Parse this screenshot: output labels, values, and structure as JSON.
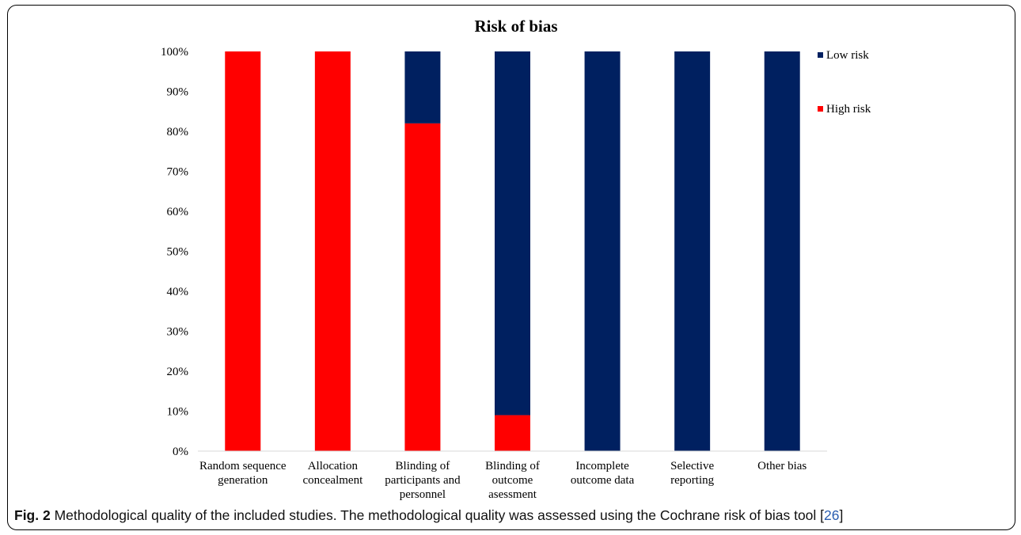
{
  "chart_data": {
    "type": "bar",
    "stacked": true,
    "title": "Risk of bias",
    "categories": [
      [
        "Random sequence",
        "generation"
      ],
      [
        "Allocation",
        "concealment"
      ],
      [
        "Blinding of",
        "participants and",
        "personnel"
      ],
      [
        "Blinding of",
        "outcome",
        "asessment"
      ],
      [
        "Incomplete",
        "outcome data"
      ],
      [
        "Selective",
        "reporting"
      ],
      [
        "Other bias"
      ]
    ],
    "series": [
      {
        "name": "High risk",
        "color": "#ff0000",
        "values": [
          100,
          100,
          82,
          9,
          0,
          0,
          0
        ]
      },
      {
        "name": "Low risk",
        "color": "#002060",
        "values": [
          0,
          0,
          18,
          91,
          100,
          100,
          100
        ]
      }
    ],
    "yticks": [
      "0%",
      "10%",
      "20%",
      "30%",
      "40%",
      "50%",
      "60%",
      "70%",
      "80%",
      "90%",
      "100%"
    ],
    "ylim": [
      0,
      100
    ],
    "legend": [
      {
        "name": "Low risk",
        "color": "#002060"
      },
      {
        "name": "High risk",
        "color": "#ff0000"
      }
    ],
    "legend_position": "right"
  },
  "caption": {
    "label": "Fig. 2",
    "text": " Methodological quality of the included studies. The methodological quality was assessed using the Cochrane risk of bias tool [",
    "ref": "26",
    "end": "]"
  }
}
